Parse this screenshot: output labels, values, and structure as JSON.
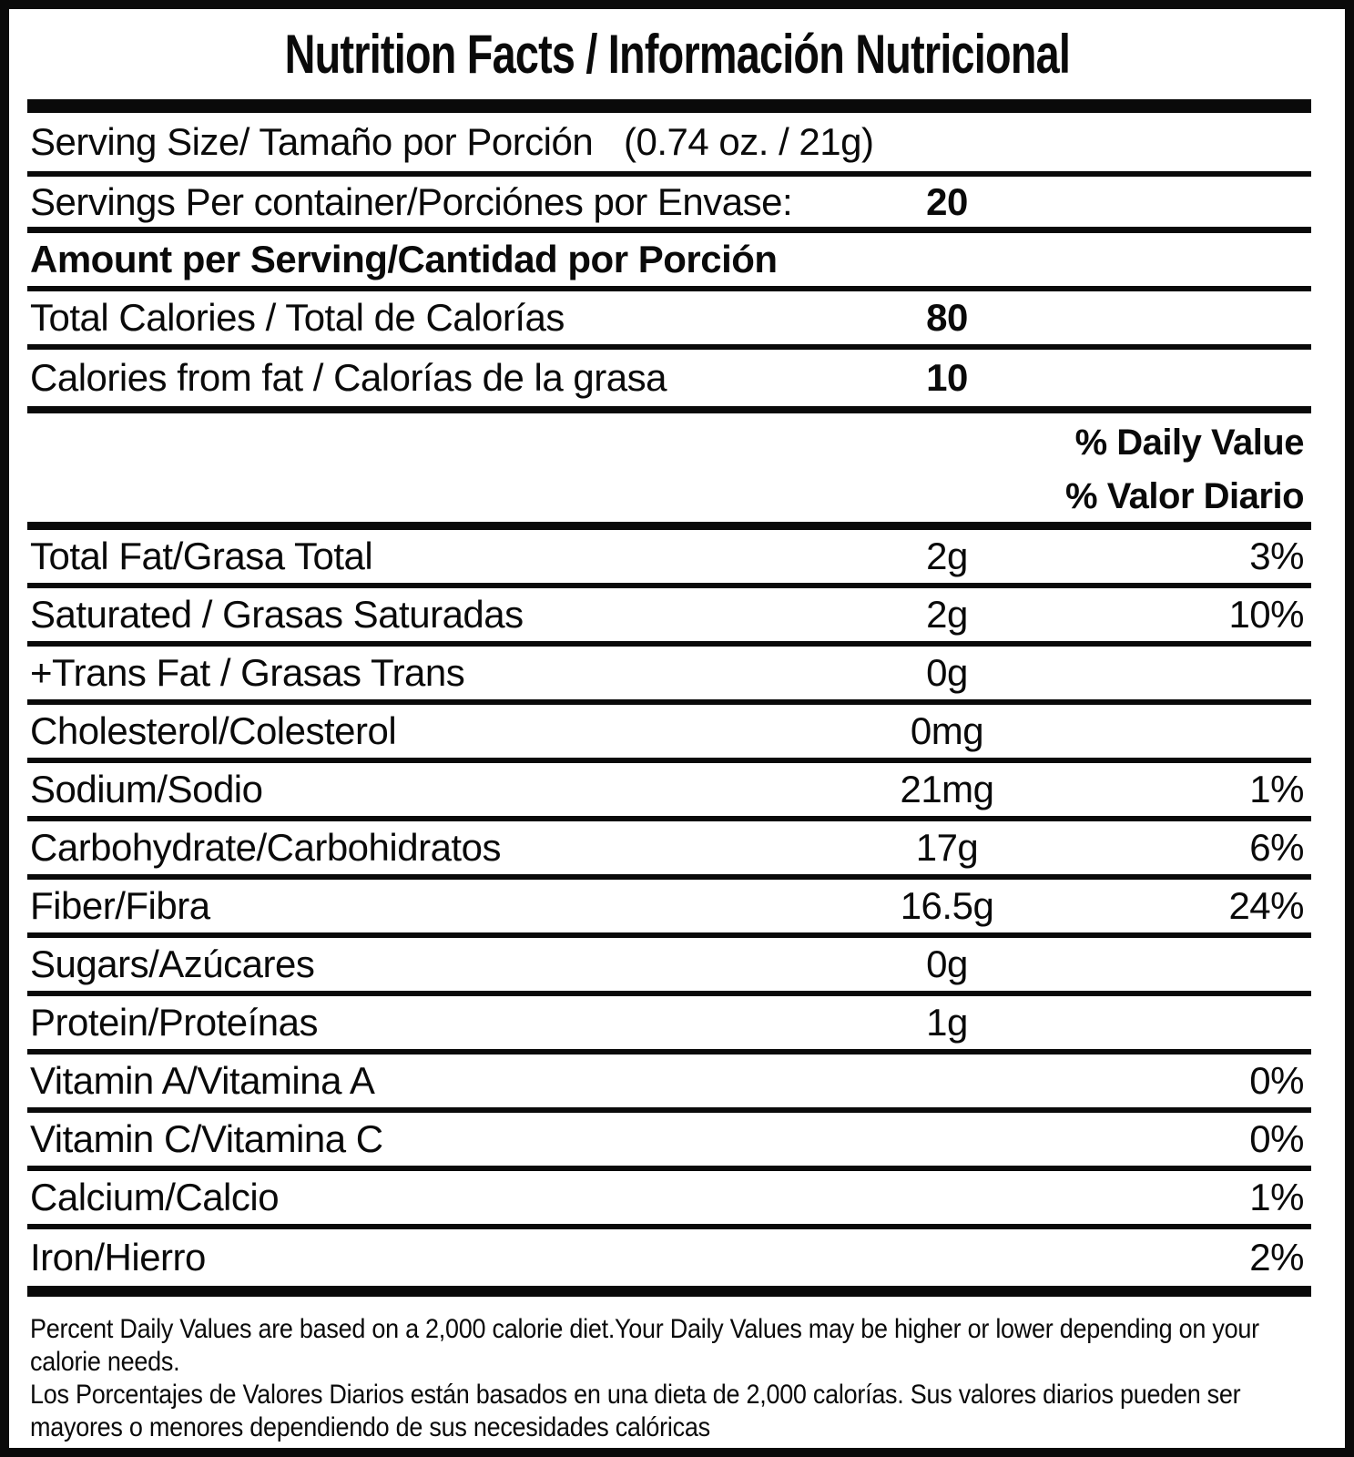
{
  "title": "Nutrition Facts / Información Nutricional",
  "serving": {
    "label": "Serving Size/ Tamaño por Porción",
    "value": "(0.74 oz. / 21g)"
  },
  "servings_per_container": {
    "label": "Servings Per container/Porciónes por Envase:",
    "value": "20"
  },
  "section_header": "Amount per Serving/Cantidad por Porción",
  "calorie_rows": [
    {
      "label": "Total Calories / Total de Calorías",
      "value": "80"
    },
    {
      "label": "Calories from fat / Calorías de la grasa",
      "value": "10"
    }
  ],
  "daily_value_header": {
    "line1": "% Daily Value",
    "line2": "% Valor Diario"
  },
  "nutrient_rows": [
    {
      "label": "Total Fat/Grasa Total",
      "amount": "2g",
      "dv": "3%"
    },
    {
      "label": "Saturated / Grasas Saturadas",
      "amount": "2g",
      "dv": "10%"
    },
    {
      "label": "+Trans Fat / Grasas Trans",
      "amount": "0g",
      "dv": ""
    },
    {
      "label": "Cholesterol/Colesterol",
      "amount": "0mg",
      "dv": ""
    },
    {
      "label": "Sodium/Sodio",
      "amount": "21mg",
      "dv": "1%"
    },
    {
      "label": "Carbohydrate/Carbohidratos",
      "amount": "17g",
      "dv": "6%"
    },
    {
      "label": "Fiber/Fibra",
      "amount": "16.5g",
      "dv": "24%"
    },
    {
      "label": "Sugars/Azúcares",
      "amount": "0g",
      "dv": ""
    },
    {
      "label": "Protein/Proteínas",
      "amount": "1g",
      "dv": ""
    },
    {
      "label": "Vitamin A/Vitamina A",
      "amount": "",
      "dv": "0%"
    },
    {
      "label": "Vitamin C/Vitamina C",
      "amount": "",
      "dv": "0%"
    },
    {
      "label": "Calcium/Calcio",
      "amount": "",
      "dv": "1%"
    },
    {
      "label": "Iron/Hierro",
      "amount": "",
      "dv": "2%"
    }
  ],
  "footnote": {
    "lines": [
      "Percent Daily Values are based on a 2,000 calorie diet.Your Daily Values may be higher or lower depending on your",
      "calorie needs.",
      "Los Porcentajes de Valores Diarios están basados en una dieta de 2,000 calorías. Sus valores diarios pueden ser",
      "mayores o menores dependiendo de sus necesidades calóricas"
    ]
  },
  "colors": {
    "ink": "#0a0a0a",
    "paper": "#ffffff"
  }
}
